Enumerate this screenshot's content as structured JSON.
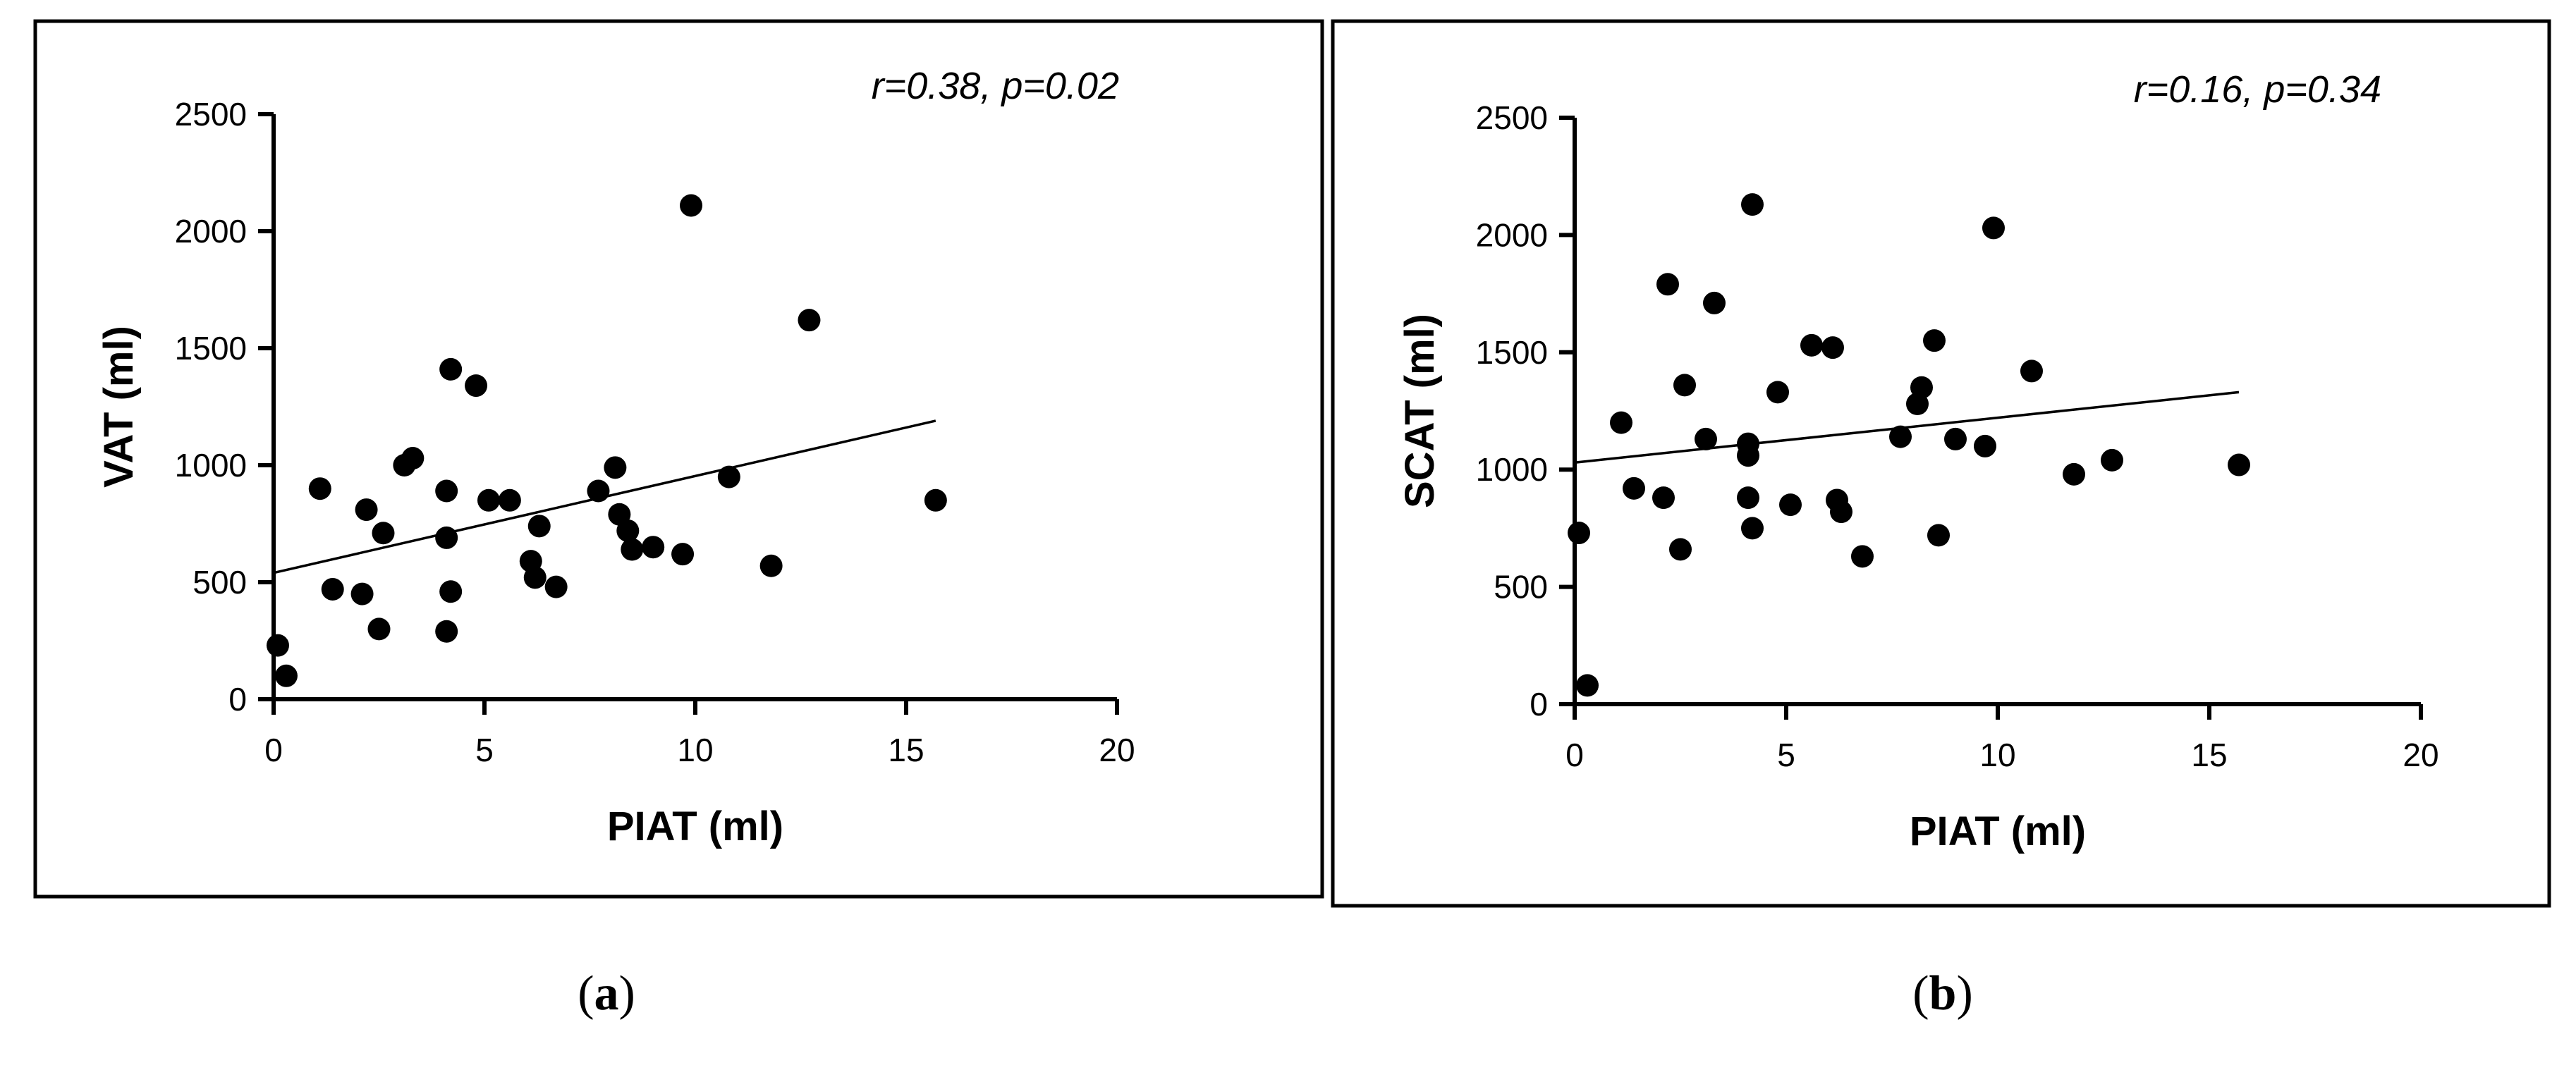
{
  "chart_data": [
    {
      "type": "scatter",
      "panel_label": "a",
      "annotation": "r=0.38, p=0.02",
      "xlabel": "PIAT (ml)",
      "ylabel": "VAT (ml)",
      "xlim": [
        0,
        20
      ],
      "ylim": [
        0,
        2500
      ],
      "xticks": [
        0,
        5,
        10,
        15,
        20
      ],
      "yticks": [
        0,
        500,
        1000,
        1500,
        2000,
        2500
      ],
      "grid": false,
      "regression_line": {
        "x": [
          0,
          15.7
        ],
        "y": [
          540,
          1190
        ]
      },
      "points": [
        [
          0.1,
          230
        ],
        [
          0.3,
          100
        ],
        [
          1.1,
          900
        ],
        [
          1.4,
          470
        ],
        [
          2.1,
          450
        ],
        [
          2.2,
          810
        ],
        [
          2.5,
          300
        ],
        [
          2.6,
          710
        ],
        [
          3.1,
          1000
        ],
        [
          3.3,
          1030
        ],
        [
          4.1,
          690
        ],
        [
          4.1,
          890
        ],
        [
          4.2,
          1410
        ],
        [
          4.2,
          460
        ],
        [
          4.1,
          290
        ],
        [
          4.8,
          1340
        ],
        [
          5.1,
          850
        ],
        [
          5.6,
          850
        ],
        [
          6.1,
          590
        ],
        [
          6.2,
          520
        ],
        [
          6.3,
          740
        ],
        [
          6.7,
          480
        ],
        [
          7.7,
          890
        ],
        [
          8.1,
          990
        ],
        [
          8.2,
          790
        ],
        [
          8.4,
          720
        ],
        [
          8.5,
          640
        ],
        [
          9.0,
          650
        ],
        [
          9.7,
          620
        ],
        [
          9.9,
          2110
        ],
        [
          10.8,
          950
        ],
        [
          11.8,
          570
        ],
        [
          12.7,
          1620
        ],
        [
          15.7,
          850
        ]
      ]
    },
    {
      "type": "scatter",
      "panel_label": "b",
      "annotation": "r=0.16, p=0.34",
      "xlabel": "PIAT (ml)",
      "ylabel": "SCAT (ml)",
      "xlim": [
        0,
        20
      ],
      "ylim": [
        0,
        2500
      ],
      "xticks": [
        0,
        5,
        10,
        15,
        20
      ],
      "yticks": [
        0,
        500,
        1000,
        1500,
        2000,
        2500
      ],
      "grid": false,
      "regression_line": {
        "x": [
          0,
          15.7
        ],
        "y": [
          1030,
          1330
        ]
      },
      "points": [
        [
          0.1,
          730
        ],
        [
          0.3,
          80
        ],
        [
          1.1,
          1200
        ],
        [
          1.4,
          920
        ],
        [
          2.1,
          880
        ],
        [
          2.2,
          1790
        ],
        [
          2.5,
          660
        ],
        [
          2.6,
          1360
        ],
        [
          3.1,
          1130
        ],
        [
          3.3,
          1710
        ],
        [
          4.1,
          1110
        ],
        [
          4.1,
          1060
        ],
        [
          4.1,
          880
        ],
        [
          4.2,
          2130
        ],
        [
          4.2,
          750
        ],
        [
          4.8,
          1330
        ],
        [
          5.1,
          850
        ],
        [
          5.6,
          1530
        ],
        [
          6.1,
          1520
        ],
        [
          6.2,
          870
        ],
        [
          6.3,
          820
        ],
        [
          6.8,
          630
        ],
        [
          7.7,
          1140
        ],
        [
          8.1,
          1280
        ],
        [
          8.2,
          1350
        ],
        [
          8.5,
          1550
        ],
        [
          8.6,
          720
        ],
        [
          9.0,
          1130
        ],
        [
          9.7,
          1100
        ],
        [
          9.9,
          2030
        ],
        [
          10.8,
          1420
        ],
        [
          11.8,
          980
        ],
        [
          12.7,
          1040
        ],
        [
          15.7,
          1020
        ]
      ]
    }
  ]
}
